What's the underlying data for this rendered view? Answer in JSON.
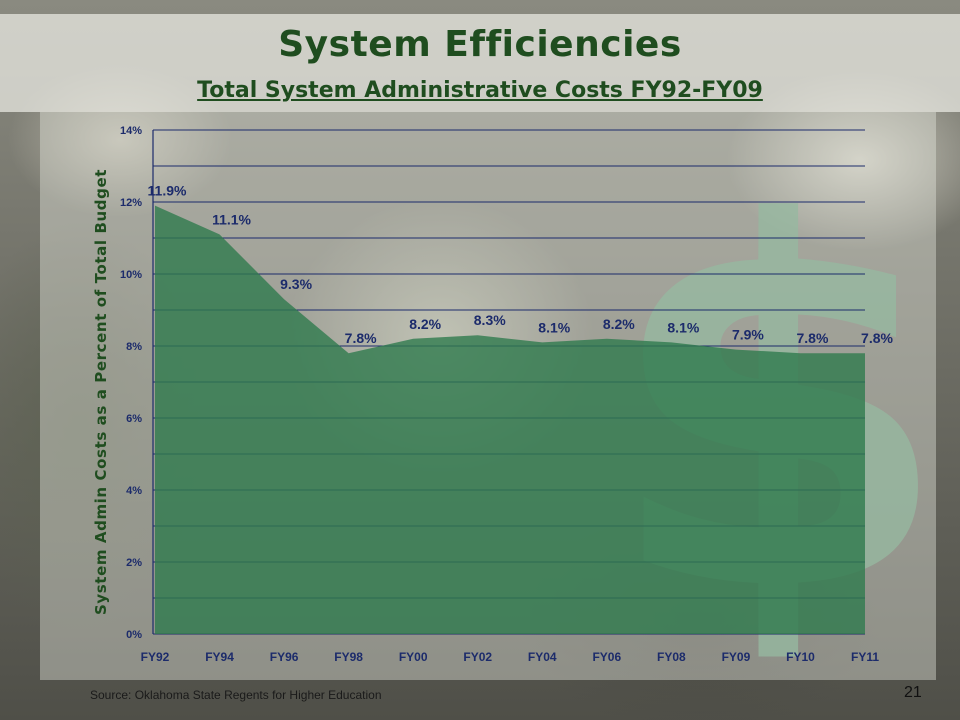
{
  "slide": {
    "title": "System Efficiencies",
    "subtitle": "Total System Administrative Costs FY92-FY09",
    "source": "Source: Oklahoma State Regents for Higher Education",
    "page_number": "21",
    "decor_symbol": "$"
  },
  "chart_data": {
    "type": "area",
    "title": "Total System Administrative Costs FY92-FY09",
    "ylabel": "System Admin Costs as a Percent of Total Budget",
    "xlabel": "",
    "categories": [
      "FY92",
      "FY94",
      "FY96",
      "FY98",
      "FY00",
      "FY02",
      "FY04",
      "FY06",
      "FY08",
      "FY09",
      "FY10",
      "FY11"
    ],
    "values": [
      11.9,
      11.1,
      9.3,
      7.8,
      8.2,
      8.3,
      8.1,
      8.2,
      8.1,
      7.9,
      7.8,
      7.8
    ],
    "data_labels": [
      "11.9%",
      "11.1%",
      "9.3%",
      "7.8%",
      "8.2%",
      "8.3%",
      "8.1%",
      "8.2%",
      "8.1%",
      "7.9%",
      "7.8%",
      "7.8%"
    ],
    "ylim": [
      0,
      14
    ],
    "yticks": [
      0,
      2,
      4,
      6,
      8,
      10,
      12,
      14
    ],
    "ytick_labels": [
      "0%",
      "2%",
      "4%",
      "6%",
      "8%",
      "10%",
      "12%",
      "14%"
    ],
    "grid": true,
    "legend": "none",
    "colors": {
      "area": "#2f7a4e",
      "gridline": "#1c2b6b",
      "title": "#1f4d1f",
      "labels": "#1c2b6b"
    }
  }
}
